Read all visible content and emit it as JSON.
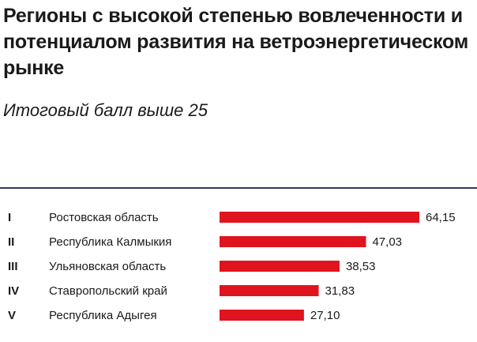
{
  "header": {
    "title": "Регионы с высокой степенью вовлеченности и потенциалом развития на ветроэнергетическом рынке",
    "subtitle": "Итоговый балл выше 25"
  },
  "colors": {
    "bar": "#e0141e",
    "divider": "#2b3a67",
    "text": "#1a1a1a"
  },
  "chart_data": {
    "type": "bar",
    "orientation": "horizontal",
    "title": "Регионы с высокой степенью вовлеченности и потенциалом развития на ветроэнергетическом рынке",
    "subtitle": "Итоговый балл выше 25",
    "ranks": [
      "I",
      "II",
      "III",
      "IV",
      "V"
    ],
    "categories": [
      "Ростовская область",
      "Республика Калмыкия",
      "Ульяновская область",
      "Ставропольский край",
      "Республика Адыгея"
    ],
    "values": [
      64.15,
      47.03,
      38.53,
      31.83,
      27.1
    ],
    "value_labels": [
      "64,15",
      "47,03",
      "38,53",
      "31,83",
      "27,10"
    ],
    "xlim": [
      0,
      64.15
    ],
    "grid": false,
    "legend": "none"
  }
}
